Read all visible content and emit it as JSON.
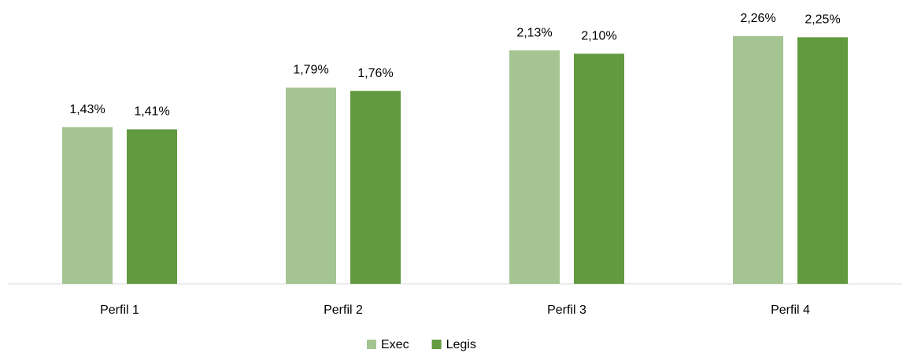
{
  "chart_data": {
    "type": "bar",
    "categories": [
      "Perfil 1",
      "Perfil 2",
      "Perfil 3",
      "Perfil 4"
    ],
    "series": [
      {
        "name": "Exec",
        "color": "#a4c592",
        "values": [
          1.43,
          1.79,
          2.13,
          2.26
        ],
        "value_labels": [
          "1,43%",
          "1,79%",
          "2,13%",
          "2,26%"
        ]
      },
      {
        "name": "Legis",
        "color": "#629a3f",
        "values": [
          1.41,
          1.76,
          2.1,
          2.25
        ],
        "value_labels": [
          "1,41%",
          "1,76%",
          "2,10%",
          "2,25%"
        ]
      }
    ],
    "legend": "bottom"
  }
}
